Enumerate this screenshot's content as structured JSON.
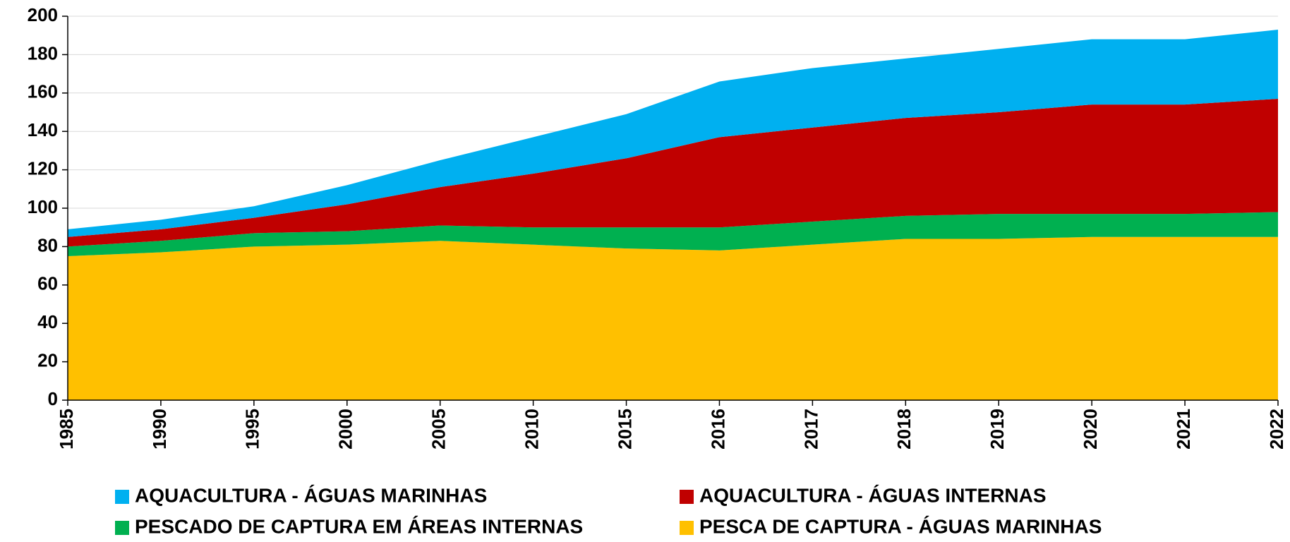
{
  "chart_data": {
    "type": "stacked_area",
    "categories": [
      "1985",
      "1990",
      "1995",
      "2000",
      "2005",
      "2010",
      "2015",
      "2016",
      "2017",
      "2018",
      "2019",
      "2020",
      "2021",
      "2022"
    ],
    "series": [
      {
        "name": "AQUACULTURA - ÁGUAS MARINHAS",
        "color": "#00b0f0",
        "values": [
          4,
          5,
          6,
          10,
          14,
          19,
          23,
          29,
          31,
          31,
          33,
          34,
          34,
          36
        ]
      },
      {
        "name": "AQUACULTURA - ÁGUAS INTERNAS",
        "color": "#c00000",
        "values": [
          5,
          6,
          8,
          14,
          20,
          28,
          36,
          47,
          49,
          51,
          53,
          57,
          57,
          59
        ]
      },
      {
        "name": "PESCADO DE CAPTURA EM ÁREAS INTERNAS",
        "color": "#00b050",
        "values": [
          5,
          6,
          7,
          7,
          8,
          9,
          11,
          12,
          12,
          12,
          13,
          12,
          12,
          13
        ]
      },
      {
        "name": "PESCA DE CAPTURA - ÁGUAS MARINHAS",
        "color": "#ffc000",
        "values": [
          75,
          77,
          80,
          81,
          83,
          81,
          79,
          78,
          81,
          84,
          84,
          85,
          85,
          85
        ]
      }
    ],
    "stacking": "bottom-up from last series",
    "ylim": [
      0,
      200
    ],
    "yticks": [
      0,
      20,
      40,
      60,
      80,
      100,
      120,
      140,
      160,
      180,
      200
    ],
    "grid": true
  }
}
